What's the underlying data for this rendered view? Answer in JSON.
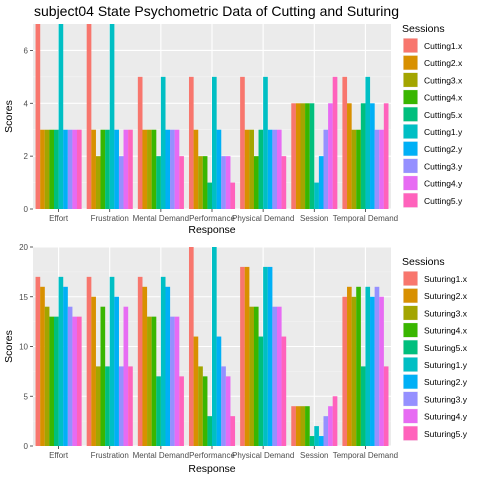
{
  "chart_data": [
    {
      "type": "bar",
      "title": "subject04 State Psychometric Data of Cutting and Suturing",
      "xlabel": "Response",
      "ylabel": "Scores",
      "ylim": [
        0,
        7
      ],
      "yticks": [
        0,
        2,
        4,
        6
      ],
      "grid": true,
      "legend_title": "Sessions",
      "legend_position": "right",
      "categories": [
        "Effort",
        "Frustration",
        "Mental Demand",
        "Performance",
        "Physical Demand",
        "Session",
        "Temporal Demand"
      ],
      "series": [
        {
          "name": "Cutting1.x",
          "color": "#F8766D",
          "values": [
            7,
            7,
            5,
            5,
            5,
            4,
            5
          ]
        },
        {
          "name": "Cutting2.x",
          "color": "#D89000",
          "values": [
            3,
            3,
            3,
            3,
            3,
            4,
            4
          ]
        },
        {
          "name": "Cutting3.x",
          "color": "#A3A500",
          "values": [
            3,
            2,
            3,
            2,
            3,
            4,
            3
          ]
        },
        {
          "name": "Cutting4.x",
          "color": "#39B600",
          "values": [
            3,
            3,
            3,
            2,
            2,
            4,
            3
          ]
        },
        {
          "name": "Cutting5.x",
          "color": "#00BF7D",
          "values": [
            3,
            3,
            2,
            1,
            3,
            4,
            4
          ]
        },
        {
          "name": "Cutting1.y",
          "color": "#00BFC4",
          "values": [
            7,
            7,
            5,
            5,
            5,
            1,
            5
          ]
        },
        {
          "name": "Cutting2.y",
          "color": "#00B0F6",
          "values": [
            3,
            3,
            3,
            3,
            3,
            2,
            4
          ]
        },
        {
          "name": "Cutting3.y",
          "color": "#9590FF",
          "values": [
            3,
            2,
            3,
            2,
            3,
            3,
            3
          ]
        },
        {
          "name": "Cutting4.y",
          "color": "#E76BF3",
          "values": [
            3,
            3,
            3,
            2,
            3,
            4,
            3
          ]
        },
        {
          "name": "Cutting5.y",
          "color": "#FF62BC",
          "values": [
            3,
            3,
            2,
            1,
            2,
            5,
            4
          ]
        }
      ]
    },
    {
      "type": "bar",
      "title": "",
      "xlabel": "Response",
      "ylabel": "Scores",
      "ylim": [
        0,
        20
      ],
      "yticks": [
        0,
        5,
        10,
        15,
        20
      ],
      "grid": true,
      "legend_title": "Sessions",
      "legend_position": "right",
      "categories": [
        "Effort",
        "Frustration",
        "Mental Demand",
        "Performance",
        "Physical Demand",
        "Session",
        "Temporal Demand"
      ],
      "series": [
        {
          "name": "Suturing1.x",
          "color": "#F8766D",
          "values": [
            17,
            17,
            17,
            20,
            18,
            4,
            15
          ]
        },
        {
          "name": "Suturing2.x",
          "color": "#D89000",
          "values": [
            16,
            15,
            16,
            11,
            18,
            4,
            16
          ]
        },
        {
          "name": "Suturing3.x",
          "color": "#A3A500",
          "values": [
            14,
            8,
            13,
            8,
            14,
            4,
            15
          ]
        },
        {
          "name": "Suturing4.x",
          "color": "#39B600",
          "values": [
            13,
            14,
            13,
            7,
            14,
            4,
            16
          ]
        },
        {
          "name": "Suturing5.x",
          "color": "#00BF7D",
          "values": [
            13,
            8,
            7,
            3,
            11,
            1,
            8
          ]
        },
        {
          "name": "Suturing1.y",
          "color": "#00BFC4",
          "values": [
            17,
            17,
            17,
            20,
            18,
            2,
            16
          ]
        },
        {
          "name": "Suturing2.y",
          "color": "#00B0F6",
          "values": [
            16,
            15,
            16,
            11,
            18,
            1,
            15
          ]
        },
        {
          "name": "Suturing3.y",
          "color": "#9590FF",
          "values": [
            14,
            8,
            13,
            8,
            14,
            3,
            16
          ]
        },
        {
          "name": "Suturing4.y",
          "color": "#E76BF3",
          "values": [
            13,
            14,
            13,
            7,
            14,
            4,
            15
          ]
        },
        {
          "name": "Suturing5.y",
          "color": "#FF62BC",
          "values": [
            13,
            8,
            7,
            3,
            11,
            5,
            8
          ]
        }
      ]
    }
  ]
}
